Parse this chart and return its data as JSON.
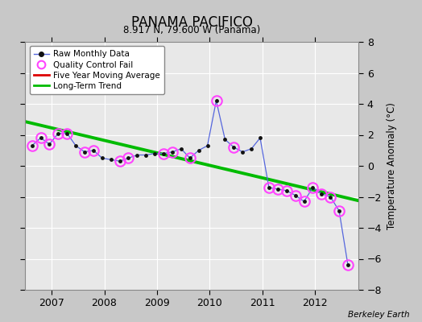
{
  "title": "PANAMA PACIFICO",
  "subtitle": "8.917 N, 79.600 W (Panama)",
  "ylabel": "Temperature Anomaly (°C)",
  "credit": "Berkeley Earth",
  "ylim": [
    -8,
    8
  ],
  "xlim": [
    2006.5,
    2012.83
  ],
  "yticks": [
    -8,
    -6,
    -4,
    -2,
    0,
    2,
    4,
    6,
    8
  ],
  "xticks": [
    2007,
    2008,
    2009,
    2010,
    2011,
    2012
  ],
  "fig_bg": "#c8c8c8",
  "plot_bg": "#e8e8e8",
  "raw_x": [
    2006.625,
    2006.792,
    2006.958,
    2007.125,
    2007.292,
    2007.458,
    2007.625,
    2007.792,
    2007.958,
    2008.125,
    2008.292,
    2008.458,
    2008.625,
    2008.792,
    2008.958,
    2009.125,
    2009.292,
    2009.458,
    2009.625,
    2009.792,
    2009.958,
    2010.125,
    2010.292,
    2010.458,
    2010.625,
    2010.792,
    2010.958,
    2011.125,
    2011.292,
    2011.458,
    2011.625,
    2011.792,
    2011.958,
    2012.125,
    2012.292,
    2012.458,
    2012.625
  ],
  "raw_y": [
    1.3,
    1.8,
    1.4,
    2.1,
    2.1,
    1.3,
    0.9,
    1.0,
    0.5,
    0.4,
    0.3,
    0.5,
    0.7,
    0.7,
    0.8,
    0.8,
    0.9,
    1.1,
    0.5,
    1.0,
    1.3,
    4.2,
    1.7,
    1.2,
    0.9,
    1.1,
    1.8,
    -1.4,
    -1.5,
    -1.6,
    -1.9,
    -2.3,
    -1.4,
    -1.8,
    -2.0,
    -2.9,
    -6.4
  ],
  "qc_x": [
    2006.625,
    2006.792,
    2006.958,
    2007.125,
    2007.292,
    2007.625,
    2007.792,
    2008.292,
    2008.458,
    2009.125,
    2009.292,
    2009.625,
    2010.125,
    2010.458,
    2011.125,
    2011.292,
    2011.458,
    2011.625,
    2011.792,
    2011.958,
    2012.125,
    2012.292,
    2012.458,
    2012.625
  ],
  "qc_y": [
    1.3,
    1.8,
    1.4,
    2.1,
    2.1,
    0.9,
    1.0,
    0.3,
    0.5,
    0.8,
    0.9,
    0.5,
    4.2,
    1.2,
    -1.4,
    -1.5,
    -1.6,
    -1.9,
    -2.3,
    -1.4,
    -1.8,
    -2.0,
    -2.9,
    -6.4
  ],
  "trend_x": [
    2006.5,
    2012.83
  ],
  "trend_y": [
    2.85,
    -2.25
  ],
  "line_color": "#5566dd",
  "dot_color": "#111111",
  "qc_color": "#ff44ff",
  "trend_color": "#00bb00",
  "ma_color": "#dd0000"
}
